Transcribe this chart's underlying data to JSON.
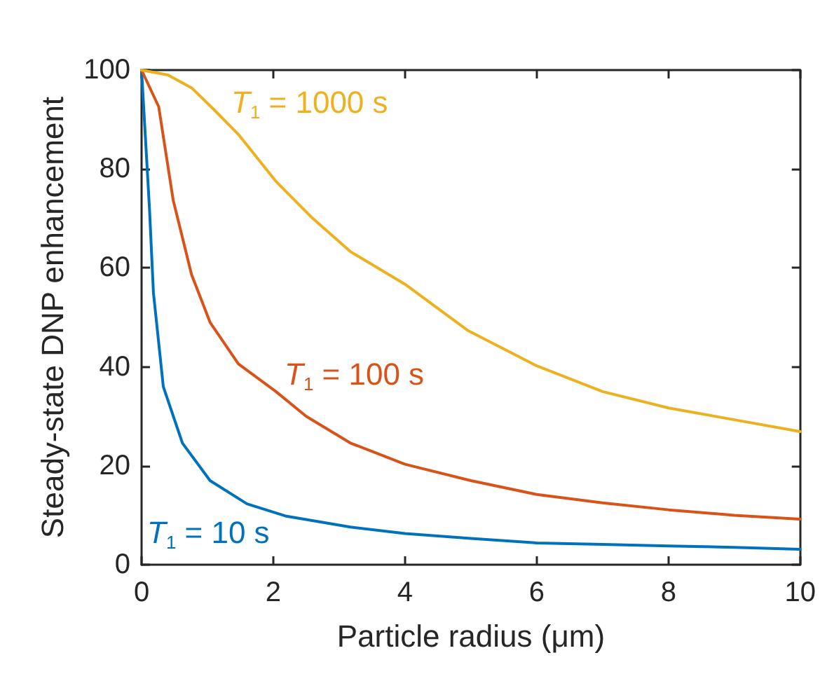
{
  "chart_data": {
    "type": "line",
    "xlabel": "Particle radius (μm)",
    "ylabel": "Steady-state DNP enhancement",
    "xlim": [
      0,
      10
    ],
    "ylim": [
      0,
      100
    ],
    "xticks": [
      0,
      2,
      4,
      6,
      8,
      10
    ],
    "yticks": [
      0,
      20,
      40,
      60,
      80,
      100
    ],
    "grid": false,
    "marker": "none",
    "line_style": "solid",
    "series": [
      {
        "color": "#0072bd",
        "x": [
          0,
          0.12,
          0.18,
          0.33,
          0.62,
          1.04,
          1.6,
          2.2,
          3.17,
          4,
          5,
          6,
          7,
          8,
          9,
          10
        ],
        "values": [
          100,
          72,
          55,
          36,
          24.6,
          17,
          12.3,
          9.8,
          7.6,
          6.3,
          5.3,
          4.4,
          4.1,
          3.8,
          3.5,
          3.1
        ]
      },
      {
        "color": "#d95319",
        "x": [
          0,
          0.26,
          0.48,
          0.76,
          1.04,
          1.47,
          2.04,
          2.5,
          3.17,
          4,
          5,
          6,
          7,
          8,
          9,
          10
        ],
        "values": [
          100,
          92.6,
          73.7,
          58.6,
          49,
          40.6,
          35,
          30,
          24.6,
          20.3,
          17,
          14.2,
          12.5,
          11.1,
          10,
          9.2
        ]
      },
      {
        "color": "#edb120",
        "x": [
          0,
          0.4,
          0.76,
          1.1,
          1.47,
          2.04,
          2.6,
          3.17,
          4,
          4.96,
          6,
          7,
          8,
          9,
          10
        ],
        "values": [
          100,
          99,
          96.4,
          92,
          87,
          77.5,
          70,
          63.3,
          56.7,
          47.3,
          40.2,
          35,
          31.7,
          29.3,
          26.9
        ]
      }
    ],
    "annotations": [
      "T$_{1}$ = 10 s",
      "T$_{1}$ = 100 s",
      "T$_{1}$ = 1000 s"
    ]
  }
}
